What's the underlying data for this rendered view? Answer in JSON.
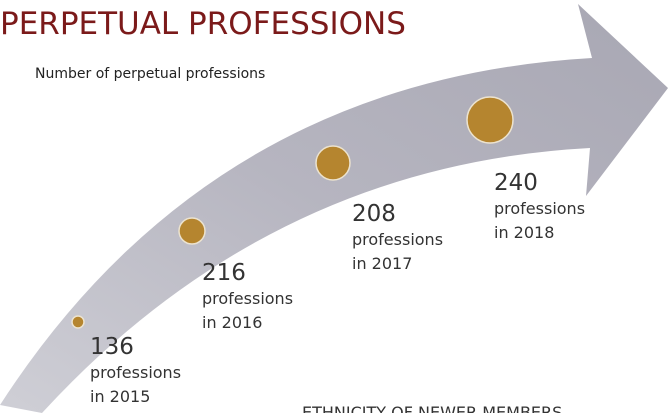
{
  "title": "PERPETUAL PROFESSIONS",
  "subtitle": "Number of perpetual professions",
  "items": [
    {
      "number": "136",
      "unit": "professions",
      "year": "in 2015"
    },
    {
      "number": "216",
      "unit": "professions",
      "year": "in 2016"
    },
    {
      "number": "208",
      "unit": "professions",
      "year": "in 2017"
    },
    {
      "number": "240",
      "unit": "professions",
      "year": "in 2018"
    }
  ],
  "footer": "ETHNICITY OF NEWER MEMBERS"
}
